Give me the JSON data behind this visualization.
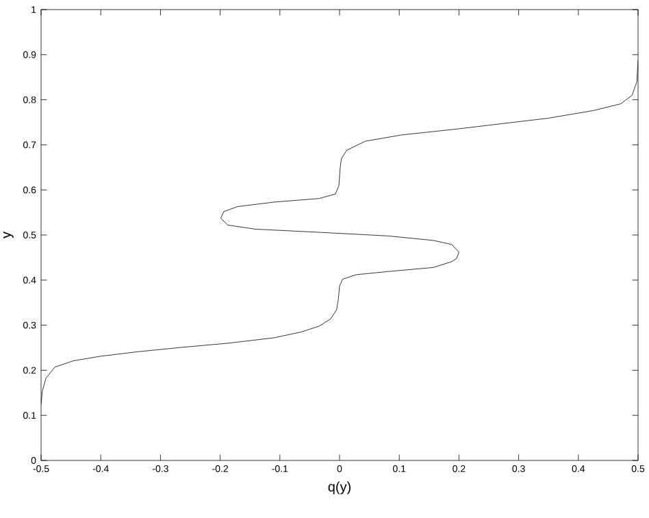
{
  "chart_data": {
    "type": "line",
    "xlabel": "q(y)",
    "ylabel": "y",
    "xlim": [
      -0.5,
      0.5
    ],
    "ylim": [
      0,
      1
    ],
    "xticks": [
      -0.5,
      -0.4,
      -0.3,
      -0.2,
      -0.1,
      0,
      0.1,
      0.2,
      0.3,
      0.4,
      0.5
    ],
    "yticks": [
      0,
      0.1,
      0.2,
      0.3,
      0.4,
      0.5,
      0.6,
      0.7,
      0.8,
      0.9,
      1
    ],
    "grid": false,
    "marker": "none",
    "line_style": "solid",
    "series": [
      {
        "color": "#000000",
        "x": [
          -0.5,
          -0.498,
          -0.492,
          -0.477,
          -0.446,
          -0.401,
          -0.339,
          -0.263,
          -0.187,
          -0.11,
          -0.064,
          -0.034,
          -0.015,
          -0.005,
          -0.002,
          0.0,
          0.005,
          0.028,
          0.081,
          0.157,
          0.188,
          0.196,
          0.2,
          0.188,
          0.157,
          0.081,
          -0.034,
          -0.141,
          -0.187,
          -0.199,
          -0.194,
          -0.171,
          -0.11,
          -0.034,
          -0.007,
          -0.001,
          0.001,
          0.003,
          0.012,
          0.043,
          0.104,
          0.196,
          0.272,
          0.349,
          0.425,
          0.471,
          0.49,
          0.498,
          0.5
        ],
        "values": [
          0.124,
          0.153,
          0.182,
          0.207,
          0.221,
          0.231,
          0.241,
          0.251,
          0.26,
          0.272,
          0.285,
          0.298,
          0.314,
          0.334,
          0.358,
          0.387,
          0.402,
          0.412,
          0.419,
          0.428,
          0.441,
          0.448,
          0.462,
          0.479,
          0.488,
          0.498,
          0.506,
          0.513,
          0.522,
          0.537,
          0.552,
          0.563,
          0.573,
          0.581,
          0.591,
          0.61,
          0.649,
          0.669,
          0.688,
          0.708,
          0.722,
          0.735,
          0.747,
          0.759,
          0.776,
          0.791,
          0.81,
          0.84,
          0.888
        ]
      }
    ]
  }
}
